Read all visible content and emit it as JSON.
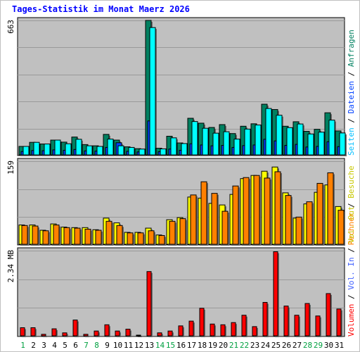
{
  "title": "Tages-Statistik im Monat Maerz 2026",
  "colors": {
    "background": "#ffffff",
    "plot_bg": "#c0c0c0",
    "gridline": "#999999",
    "border": "#000000",
    "title": "#0000ff",
    "weekday_label": "#000000",
    "weekend_label": "#00a040",
    "anfragen": "#008060",
    "dateien": "#0040ff",
    "seiten": "#00ffff",
    "besuche": "#ffff00",
    "rechner": "#ff8000",
    "vol_out": "#c8c800",
    "vol_in": "#4060ff",
    "volumen": "#ff0000"
  },
  "legend": {
    "separator": "/",
    "panel1": [
      {
        "text": "Anfragen",
        "color": "#008060"
      },
      {
        "text": "Dateien",
        "color": "#0040ff"
      },
      {
        "text": "Seiten",
        "color": "#00bfff"
      }
    ],
    "panel2": [
      {
        "text": "Besuche",
        "color": "#c8c800"
      },
      {
        "text": "Rechner",
        "color": "#ff8000"
      }
    ],
    "panel3": [
      {
        "text": "Vol. Out",
        "color": "#c8c800"
      },
      {
        "text": "Vol. In",
        "color": "#4060ff"
      },
      {
        "text": "Volumen",
        "color": "#ff0000"
      }
    ]
  },
  "chart_data": [
    {
      "type": "bar",
      "categories": [
        "1",
        "2",
        "3",
        "4",
        "5",
        "6",
        "7",
        "8",
        "9",
        "10",
        "11",
        "12",
        "13",
        "14",
        "15",
        "16",
        "17",
        "18",
        "19",
        "20",
        "21",
        "22",
        "23",
        "24",
        "25",
        "26",
        "27",
        "28",
        "29",
        "30",
        "31"
      ],
      "weekend_days": [
        "1",
        "7",
        "8",
        "14",
        "15",
        "21",
        "22",
        "28",
        "29"
      ],
      "ymax_label": "663",
      "ylim": [
        0,
        663
      ],
      "grid": true,
      "series": [
        {
          "name": "Anfragen",
          "color": "#008060",
          "values": [
            45,
            65,
            57,
            76,
            66,
            91,
            54,
            48,
            104,
            76,
            43,
            34,
            663,
            36,
            95,
            62,
            183,
            159,
            138,
            152,
            108,
            144,
            156,
            252,
            226,
            144,
            166,
            119,
            129,
            210,
            121
          ]
        },
        {
          "name": "Dateien",
          "color": "#0040ff",
          "values": [
            20,
            25,
            24,
            28,
            26,
            30,
            23,
            22,
            40,
            63,
            21,
            18,
            170,
            19,
            32,
            26,
            58,
            52,
            48,
            50,
            40,
            49,
            52,
            80,
            72,
            50,
            55,
            42,
            45,
            68,
            44
          ]
        },
        {
          "name": "Seiten",
          "color": "#00ffff",
          "values": [
            45,
            65,
            57,
            76,
            58,
            80,
            48,
            45,
            81,
            48,
            40,
            32,
            628,
            33,
            87,
            59,
            167,
            134,
            110,
            117,
            81,
            130,
            150,
            231,
            198,
            137,
            155,
            106,
            115,
            174,
            111
          ]
        }
      ]
    },
    {
      "type": "bar",
      "categories": [
        "1",
        "2",
        "3",
        "4",
        "5",
        "6",
        "7",
        "8",
        "9",
        "10",
        "11",
        "12",
        "13",
        "14",
        "15",
        "16",
        "17",
        "18",
        "19",
        "20",
        "21",
        "22",
        "23",
        "24",
        "25",
        "26",
        "27",
        "28",
        "29",
        "30",
        "31"
      ],
      "ymax_label": "159",
      "ylim": [
        0,
        159
      ],
      "grid": true,
      "series": [
        {
          "name": "Besuche",
          "color": "#ffff00",
          "values": [
            38,
            38,
            28,
            40,
            34,
            33,
            33,
            29,
            51,
            42,
            24,
            24,
            32,
            19,
            48,
            52,
            91,
            89,
            79,
            76,
            96,
            126,
            132,
            140,
            148,
            99,
            51,
            78,
            100,
            114,
            73
          ]
        },
        {
          "name": "Rechner",
          "color": "#ff8000",
          "values": [
            37,
            36,
            27,
            38,
            33,
            32,
            30,
            28,
            45,
            37,
            23,
            23,
            27,
            18,
            45,
            50,
            95,
            120,
            98,
            64,
            112,
            128,
            132,
            127,
            139,
            94,
            53,
            82,
            117,
            137,
            66
          ]
        }
      ]
    },
    {
      "type": "bar",
      "categories": [
        "1",
        "2",
        "3",
        "4",
        "5",
        "6",
        "7",
        "8",
        "9",
        "10",
        "11",
        "12",
        "13",
        "14",
        "15",
        "16",
        "17",
        "18",
        "19",
        "20",
        "21",
        "22",
        "23",
        "24",
        "25",
        "26",
        "27",
        "28",
        "29",
        "30",
        "31"
      ],
      "ymax_label": "2.34 MB",
      "unit": "MB",
      "ylim": [
        0,
        2.34
      ],
      "grid": true,
      "series": [
        {
          "name": "Volumen",
          "color": "#ff0000",
          "values": [
            0.24,
            0.24,
            0.06,
            0.21,
            0.1,
            0.45,
            0.06,
            0.15,
            0.32,
            0.15,
            0.2,
            0.03,
            1.77,
            0.1,
            0.15,
            0.29,
            0.42,
            0.77,
            0.34,
            0.32,
            0.38,
            0.58,
            0.27,
            0.93,
            2.31,
            0.83,
            0.58,
            0.9,
            0.56,
            1.17,
            0.75
          ]
        }
      ]
    }
  ]
}
